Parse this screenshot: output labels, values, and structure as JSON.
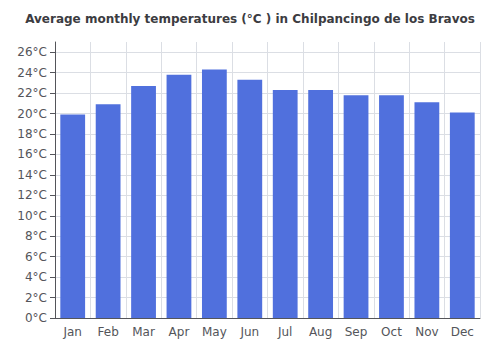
{
  "chart_data": {
    "type": "bar",
    "title": "Average monthly temperatures (°C ) in Chilpancingo de los Bravos",
    "categories": [
      "Jan",
      "Feb",
      "Mar",
      "Apr",
      "May",
      "Jun",
      "Jul",
      "Aug",
      "Sep",
      "Oct",
      "Nov",
      "Dec"
    ],
    "values": [
      19.9,
      20.9,
      22.7,
      23.8,
      24.3,
      23.3,
      22.3,
      22.3,
      21.8,
      21.8,
      21.1,
      20.1
    ],
    "ylim": [
      0,
      27
    ],
    "yticks": [
      {
        "value": 0,
        "label": "0°C"
      },
      {
        "value": 2,
        "label": "2°C"
      },
      {
        "value": 4,
        "label": "4°C"
      },
      {
        "value": 6,
        "label": "6°C"
      },
      {
        "value": 8,
        "label": "8°C"
      },
      {
        "value": 10,
        "label": "10°C"
      },
      {
        "value": 12,
        "label": "12°C"
      },
      {
        "value": 14,
        "label": "14°C"
      },
      {
        "value": 16,
        "label": "16°C"
      },
      {
        "value": 18,
        "label": "18°C"
      },
      {
        "value": 20,
        "label": "20°C"
      },
      {
        "value": 22,
        "label": "22°C"
      },
      {
        "value": 24,
        "label": "24°C"
      },
      {
        "value": 26,
        "label": "26°C"
      }
    ],
    "grid": true
  }
}
